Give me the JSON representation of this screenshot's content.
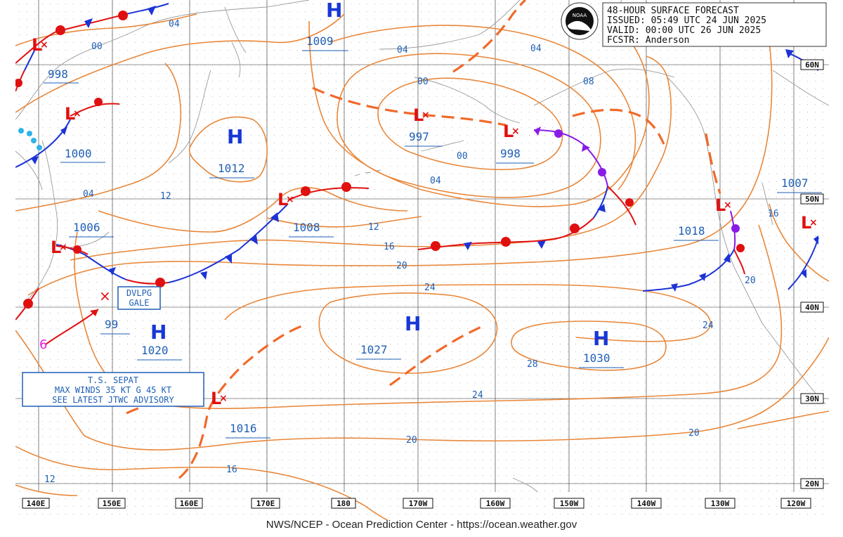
{
  "header": {
    "line1": "48-HOUR SURFACE FORECAST",
    "line2": "ISSUED: 05:49 UTC 24 JUN 2025",
    "line3": "VALID:  00:00 UTC 26 JUN 2025",
    "line4": "FCSTR:  Anderson",
    "logo_text": "NOAA"
  },
  "footer": "NWS/NCEP - Ocean Prediction Center - https://ocean.weather.gov",
  "longitudes": [
    "140E",
    "150E",
    "160E",
    "170E",
    "180",
    "170W",
    "160W",
    "150W",
    "140W",
    "130W",
    "120W"
  ],
  "latitudes": [
    "60N",
    "50N",
    "40N",
    "30N",
    "20N"
  ],
  "pressure_systems": [
    {
      "type": "H",
      "value": "1009"
    },
    {
      "type": "L",
      "value": "998"
    },
    {
      "type": "L",
      "value": "1000"
    },
    {
      "type": "H",
      "value": "1012"
    },
    {
      "type": "L",
      "value": "997"
    },
    {
      "type": "L",
      "value": "998"
    },
    {
      "type": "L",
      "value": "1006"
    },
    {
      "type": "L",
      "value": "1008"
    },
    {
      "type": "L",
      "value": "99"
    },
    {
      "type": "H",
      "value": "1020"
    },
    {
      "type": "H",
      "value": "1027"
    },
    {
      "type": "H",
      "value": "1030"
    },
    {
      "type": "H",
      "value": "1018"
    },
    {
      "type": "L",
      "value": "1007"
    },
    {
      "type": "L",
      "value": "1016"
    }
  ],
  "isobar_labels": [
    "04",
    "00",
    "04",
    "00",
    "08",
    "00",
    "04",
    "04",
    "12",
    "12",
    "16",
    "20",
    "24",
    "28",
    "24",
    "20",
    "20",
    "16",
    "12",
    "16",
    "20",
    "24",
    "04"
  ],
  "annotations": {
    "gale_line1": "DVLPG",
    "gale_line2": "GALE",
    "ts_line1": "T.S. SEPAT",
    "ts_line2": "MAX WINDS 35 KT G 45 KT",
    "ts_line3": "SEE LATEST JTWC ADVISORY",
    "ts_symbol": "6"
  },
  "colors": {
    "isobar": "#e8873a",
    "trough": "#f06a2a",
    "cold_front": "#1c33d6",
    "warm_front": "#e01010",
    "occluded_front": "#8a1be6",
    "label": "#1f5fb6",
    "high": "#1837d6",
    "low": "#e01010"
  }
}
